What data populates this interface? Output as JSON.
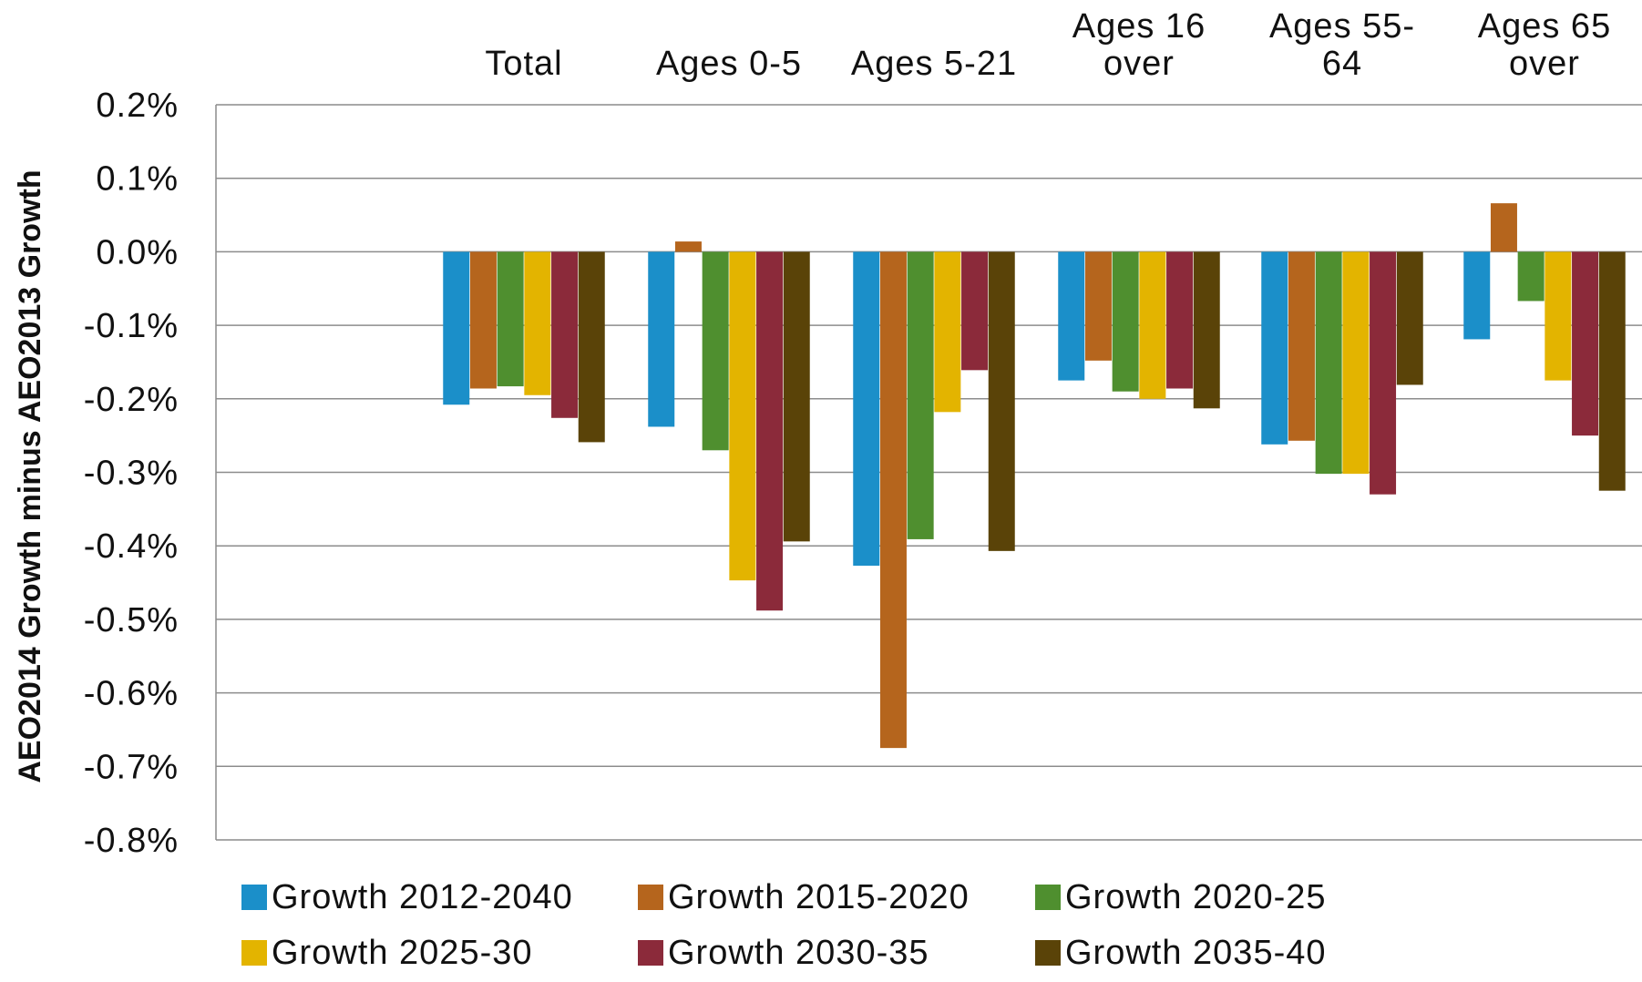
{
  "chart_data": {
    "type": "bar",
    "title": "",
    "xlabel": "",
    "ylabel": "AEO2014 Growth minus AEO2013 Growth",
    "categories": [
      [
        "Total"
      ],
      [
        "Ages 0-5"
      ],
      [
        "Ages 5-21"
      ],
      [
        "Ages 16",
        "over"
      ],
      [
        "Ages 55-",
        "64"
      ],
      [
        "Ages 65",
        "over"
      ]
    ],
    "category_labels_position": "top",
    "ylim": [
      -0.8,
      0.2
    ],
    "yticks": [
      0.2,
      0.1,
      0.0,
      -0.1,
      -0.2,
      -0.3,
      -0.4,
      -0.5,
      -0.6,
      -0.7,
      -0.8
    ],
    "ytick_labels": [
      "0.2%",
      "0.1%",
      "0.0%",
      "-0.1%",
      "-0.2%",
      "-0.3%",
      "-0.4%",
      "-0.5%",
      "-0.6%",
      "-0.7%",
      "-0.8%"
    ],
    "y_unit": "%",
    "grid": true,
    "legend_position": "bottom",
    "series": [
      {
        "name": "Growth 2012-2040",
        "color": "#1b8fc9",
        "values": [
          -0.208,
          -0.238,
          -0.427,
          -0.175,
          -0.262,
          -0.119
        ]
      },
      {
        "name": "Growth 2015-2020",
        "color": "#b5651d",
        "values": [
          -0.186,
          0.014,
          -0.675,
          -0.148,
          -0.257,
          0.066
        ]
      },
      {
        "name": "Growth 2020-25",
        "color": "#4f8f2f",
        "values": [
          -0.183,
          -0.27,
          -0.391,
          -0.19,
          -0.302,
          -0.067
        ]
      },
      {
        "name": "Growth 2025-30",
        "color": "#e3b400",
        "values": [
          -0.195,
          -0.447,
          -0.218,
          -0.2,
          -0.302,
          -0.175
        ]
      },
      {
        "name": "Growth 2030-35",
        "color": "#8b2a3a",
        "values": [
          -0.226,
          -0.488,
          -0.161,
          -0.186,
          -0.33,
          -0.25
        ]
      },
      {
        "name": "Growth 2035-40",
        "color": "#5a4308",
        "values": [
          -0.259,
          -0.394,
          -0.407,
          -0.213,
          -0.181,
          -0.325
        ]
      }
    ]
  }
}
